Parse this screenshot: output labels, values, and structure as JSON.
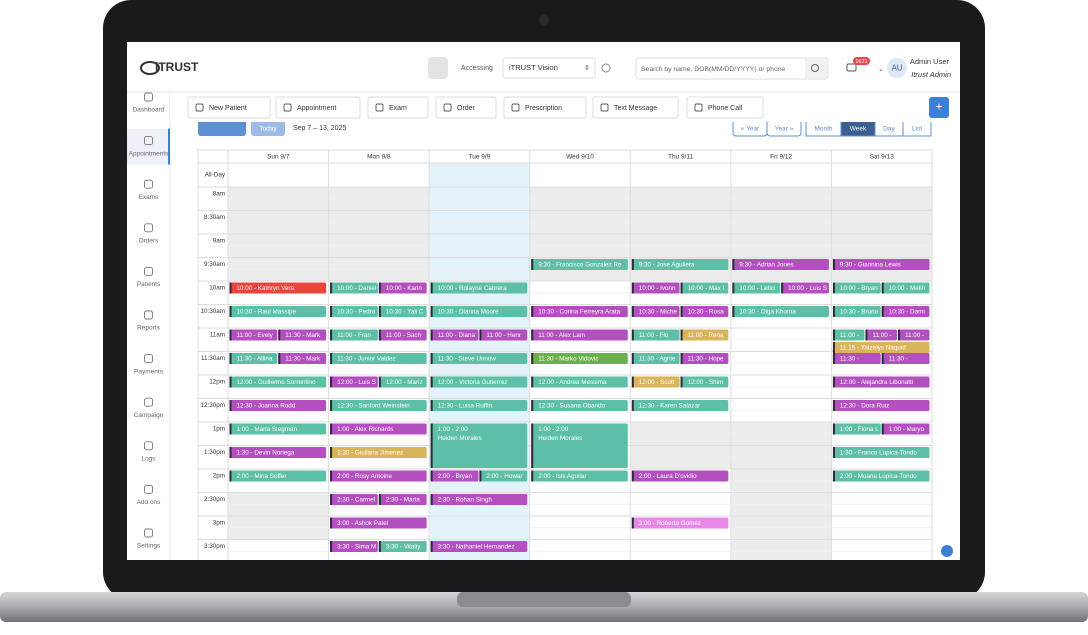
{
  "header": {
    "logo": "iTRUST",
    "accessing": "Accessing",
    "location": "iTRUST Vision",
    "search_placeholder": "Search by name, DOB(MM/DD/YYYY) or phone",
    "notifications": "1621",
    "avatar": "AU",
    "user_name": "Admin User",
    "user_role": "Itrust Admin"
  },
  "toolbar": [
    "New Patient",
    "Appointment",
    "Exam",
    "Order",
    "Prescription",
    "Text Message",
    "Phone Call"
  ],
  "add_button": "+",
  "sidebar": [
    "Dashboard",
    "Appointments",
    "Exams",
    "Orders",
    "Patients",
    "Reports",
    "Payments",
    "Campaign",
    "Logs",
    "Add ons",
    "Settings"
  ],
  "calendar": {
    "today": "Today",
    "range": "Sep 7 – 13, 2025",
    "prev_year": "« Year",
    "next_year": "Year »",
    "views": [
      "Month",
      "Week",
      "Day",
      "List"
    ],
    "days": [
      "Sun 9/7",
      "Mon 9/8",
      "Tue 9/9",
      "Wed 9/10",
      "Thu 9/11",
      "Fri 9/12",
      "Sat 9/13"
    ],
    "all_day": "All-Day",
    "times": [
      "8am",
      "8:30am",
      "9am",
      "9:30am",
      "10am",
      "10:30am",
      "11am",
      "11:30am",
      "12pm",
      "12:30pm",
      "1pm",
      "1:30pm",
      "2pm",
      "2:30pm",
      "3pm",
      "3:30pm"
    ],
    "schedule": [
      [
        [],
        [],
        [],
        [],
        [],
        [],
        []
      ],
      [
        [],
        [],
        [],
        [],
        [],
        [],
        []
      ],
      [
        [],
        [],
        [],
        [],
        [],
        [],
        []
      ],
      [
        [],
        [],
        [],
        [
          [
            {
              "title": "9:30 - Francisco Gonzalez Re",
              "color": "#5cbfa6"
            }
          ]
        ],
        [
          [
            {
              "title": "9:30 - Jose Aguilera",
              "color": "#5cbfa6"
            }
          ]
        ],
        [
          [
            {
              "title": "9:30 - Adrian Jones",
              "color": "#b44fc0"
            }
          ]
        ],
        [
          [
            {
              "title": "9:30 - Giannina Lewis",
              "color": "#b44fc0"
            }
          ]
        ]
      ],
      [
        [
          [
            {
              "title": "10:00 - Kathryn Vera",
              "color": "#e8453c"
            }
          ]
        ],
        [
          [
            {
              "title": "10:00 - Daniel",
              "color": "#5cbfa6"
            },
            {
              "title": "10:00 - Karin",
              "color": "#b44fc0"
            }
          ]
        ],
        [
          [
            {
              "title": "10:00 - Rolayne Cabrera",
              "color": "#5cbfa6"
            }
          ]
        ],
        [],
        [
          [
            {
              "title": "10:00 - Ivonn",
              "color": "#b44fc0"
            },
            {
              "title": "10:00 - Max I",
              "color": "#5cbfa6"
            }
          ]
        ],
        [
          [
            {
              "title": "10:00 - Letici",
              "color": "#5cbfa6"
            },
            {
              "title": "10:00 - Luis S",
              "color": "#b44fc0"
            }
          ]
        ],
        [
          [
            {
              "title": "10:00 - Bryan",
              "color": "#5cbfa6"
            },
            {
              "title": "10:00 - Melih",
              "color": "#5cbfa6"
            }
          ]
        ]
      ],
      [
        [
          [
            {
              "title": "10:30 - Raul Massipe",
              "color": "#5cbfa6"
            }
          ]
        ],
        [
          [
            {
              "title": "10:30 - Pedro",
              "color": "#5cbfa6"
            },
            {
              "title": "10:30 - Yali C",
              "color": "#5cbfa6"
            }
          ]
        ],
        [
          [
            {
              "title": "10:30 - Dianna Moore",
              "color": "#5cbfa6"
            }
          ]
        ],
        [
          [
            {
              "title": "10:30 - Corina Ferreyra Arata",
              "color": "#b44fc0"
            }
          ]
        ],
        [
          [
            {
              "title": "10:30 - Miche",
              "color": "#b44fc0"
            },
            {
              "title": "10:30 - Rosa",
              "color": "#b44fc0"
            }
          ]
        ],
        [
          [
            {
              "title": "10:30 - Olga Khoma",
              "color": "#5cbfa6"
            }
          ]
        ],
        [
          [
            {
              "title": "10:30 - Bruno",
              "color": "#5cbfa6"
            },
            {
              "title": "10:30 - Dami",
              "color": "#b44fc0"
            }
          ]
        ]
      ],
      [
        [
          [
            {
              "title": "11:00 - Evelyn",
              "color": "#b44fc0"
            },
            {
              "title": "11:30 - Mark",
              "color": "#b44fc0"
            }
          ]
        ],
        [
          [
            {
              "title": "11:00 - Fran",
              "color": "#5cbfa6"
            },
            {
              "title": "11:00 - Sach",
              "color": "#b44fc0"
            }
          ]
        ],
        [
          [
            {
              "title": "11:00 - Diana",
              "color": "#b44fc0"
            },
            {
              "title": "11:00 - Henr",
              "color": "#b44fc0"
            }
          ]
        ],
        [
          [
            {
              "title": "11:00 - Alex Lam",
              "color": "#b44fc0"
            }
          ]
        ],
        [
          [
            {
              "title": "11:00 - Flo",
              "color": "#5cbfa6"
            },
            {
              "title": "11:00 - Rena",
              "color": "#d9b45a"
            }
          ]
        ],
        [],
        [
          [
            {
              "title": "11:00 -",
              "color": "#5cbfa6"
            },
            {
              "title": "11:00 -",
              "color": "#b44fc0"
            },
            {
              "title": "11:00 -",
              "color": "#b44fc0"
            }
          ],
          [
            {
              "title": "11:15 - Yatzelys Naquid",
              "color": "#d9b45a"
            }
          ]
        ]
      ],
      [
        [
          [
            {
              "title": "11:30 - Allina",
              "color": "#5cbfa6"
            },
            {
              "title": "11:30 - Mark",
              "color": "#b44fc0"
            }
          ]
        ],
        [
          [
            {
              "title": "11:30 - Junior Valdez",
              "color": "#5cbfa6"
            }
          ]
        ],
        [
          [
            {
              "title": "11:30 - Steve Unnow",
              "color": "#5cbfa6"
            }
          ]
        ],
        [
          [
            {
              "title": "11:30 - Marko Vidovic",
              "color": "#6ab04c"
            }
          ]
        ],
        [
          [
            {
              "title": "11:30 - Agnie",
              "color": "#5cbfa6"
            },
            {
              "title": "11:30 - Hope",
              "color": "#b44fc0"
            }
          ]
        ],
        [],
        [
          [
            {
              "title": "11:30 -",
              "color": "#b44fc0"
            },
            {
              "title": "11:30 -",
              "color": "#b44fc0"
            }
          ]
        ]
      ],
      [
        [
          [
            {
              "title": "12:00 - Guillermo Sorrentino",
              "color": "#5cbfa6"
            }
          ]
        ],
        [
          [
            {
              "title": "12:00 - Luis S",
              "color": "#b44fc0"
            },
            {
              "title": "12:00 - Mariz",
              "color": "#5cbfa6"
            }
          ]
        ],
        [
          [
            {
              "title": "12:00 - Victoria Gutierrez",
              "color": "#5cbfa6"
            }
          ]
        ],
        [
          [
            {
              "title": "12:00 - Andrea Messima",
              "color": "#5cbfa6"
            }
          ]
        ],
        [
          [
            {
              "title": "12:00 - Scott",
              "color": "#d9b45a"
            },
            {
              "title": "12:00 - Shim",
              "color": "#5cbfa6"
            }
          ]
        ],
        [],
        [
          [
            {
              "title": "12:00 - Alejandra Libonatti",
              "color": "#b44fc0"
            }
          ]
        ]
      ],
      [
        [
          [
            {
              "title": "12:30 - Joanna Rodd",
              "color": "#b44fc0"
            }
          ]
        ],
        [
          [
            {
              "title": "12:30 - Sanford Weinstein",
              "color": "#5cbfa6"
            }
          ]
        ],
        [
          [
            {
              "title": "12:30 - Luisa Ruffin",
              "color": "#5cbfa6"
            }
          ]
        ],
        [
          [
            {
              "title": "12:30 - Susana Obando",
              "color": "#5cbfa6"
            }
          ]
        ],
        [
          [
            {
              "title": "12:30 - Karen Salazar",
              "color": "#5cbfa6"
            }
          ]
        ],
        [],
        [
          [
            {
              "title": "12:30 - Dora Ruiz",
              "color": "#b44fc0"
            }
          ]
        ]
      ],
      [
        [
          [
            {
              "title": "1:00 - Marla Stegman",
              "color": "#5cbfa6"
            }
          ]
        ],
        [
          [
            {
              "title": "1:00 - Alex Richards",
              "color": "#b44fc0"
            }
          ]
        ],
        [
          [
            {
              "title": "1:00 - 2:00",
              "sub": "Heiden Morales",
              "span": 2,
              "color": "#5cbfa6"
            }
          ]
        ],
        [
          [
            {
              "title": "1:00 - 2:00",
              "sub": "Heiden Morales",
              "span": 2,
              "color": "#5cbfa6"
            }
          ]
        ],
        [],
        [],
        [
          [
            {
              "title": "1:00 - Fiona L",
              "color": "#5cbfa6"
            },
            {
              "title": "1:00 - Maryo",
              "color": "#b44fc0"
            }
          ]
        ]
      ],
      [
        [
          [
            {
              "title": "1:30 - Devin Noriega",
              "color": "#b44fc0"
            }
          ]
        ],
        [
          [
            {
              "title": "1:30 - Giuliana Jimenez",
              "color": "#d9b45a"
            }
          ]
        ],
        [],
        [],
        [],
        [],
        [
          [
            {
              "title": "1:30 - Franco Lupica-Tondo",
              "color": "#5cbfa6"
            }
          ]
        ]
      ],
      [
        [
          [
            {
              "title": "2:00 - Mina Soffer",
              "color": "#5cbfa6"
            }
          ]
        ],
        [
          [
            {
              "title": "2:00 - Rosy Antoine",
              "color": "#b44fc0"
            }
          ]
        ],
        [
          [
            {
              "title": "2:00 - Bryan",
              "color": "#b44fc0"
            },
            {
              "title": "2:00 - Howar",
              "color": "#5cbfa6"
            }
          ]
        ],
        [
          [
            {
              "title": "2:00 - Isis Aguilar",
              "color": "#5cbfa6"
            }
          ]
        ],
        [
          [
            {
              "title": "2:00 - Laura D'ovidio",
              "color": "#b44fc0"
            }
          ]
        ],
        [],
        [
          [
            {
              "title": "2:00 - Moana Lupica-Tondo",
              "color": "#5cbfa6"
            }
          ]
        ]
      ],
      [
        [],
        [
          [
            {
              "title": "2:30 - Carmel",
              "color": "#b44fc0"
            },
            {
              "title": "2:30 - Marta",
              "color": "#b44fc0"
            }
          ]
        ],
        [
          [
            {
              "title": "2:30 - Rohan Singh",
              "color": "#b44fc0"
            }
          ]
        ],
        [],
        [],
        [],
        []
      ],
      [
        [],
        [
          [
            {
              "title": "3:00 - Ashok Patel",
              "color": "#b44fc0"
            }
          ]
        ],
        [],
        [],
        [
          [
            {
              "title": "3:00 - Roberto Gomez",
              "color": "#e987e6"
            }
          ]
        ],
        [],
        []
      ],
      [
        [],
        [
          [
            {
              "title": "3:30 - Sima M",
              "color": "#b44fc0"
            },
            {
              "title": "3:30 - Vitaliy",
              "color": "#5cbfa6"
            }
          ]
        ],
        [
          [
            {
              "title": "3:30 - Nathaniel Hernandez",
              "color": "#b44fc0"
            }
          ]
        ],
        [],
        [],
        [],
        []
      ]
    ]
  }
}
